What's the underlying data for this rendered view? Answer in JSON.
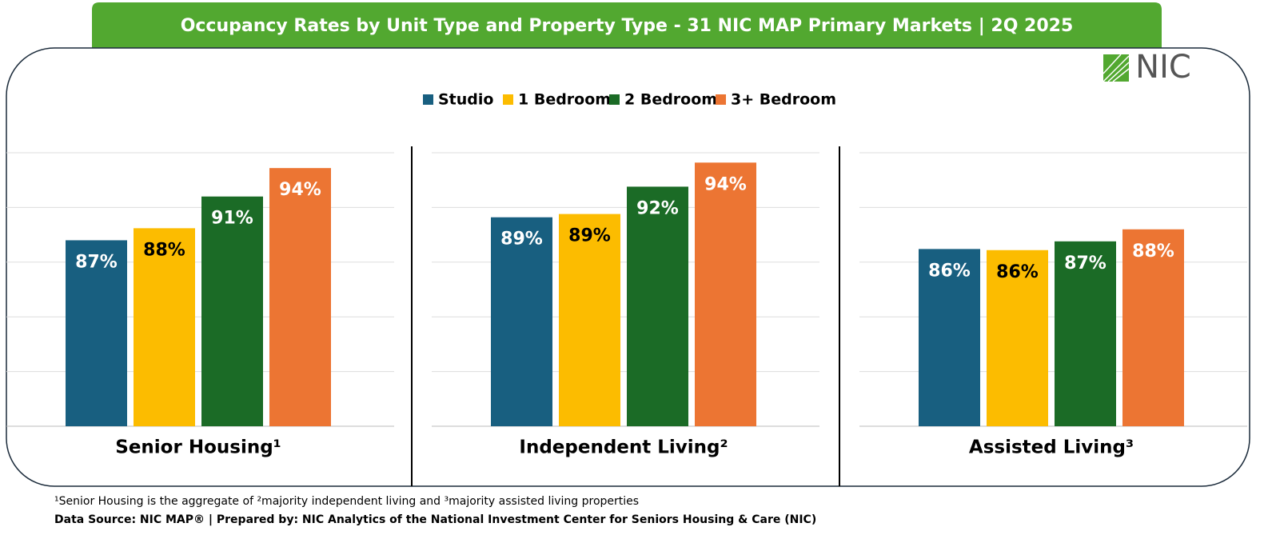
{
  "chart_data": {
    "type": "bar",
    "title": "Occupancy Rates by Unit Type and Property Type  - 31 NIC MAP Primary Markets | 2Q 2025",
    "categories": [
      "Senior Housing¹",
      "Independent Living²",
      "Assisted Living³"
    ],
    "series": [
      {
        "name": "Studio",
        "color": "#185f80",
        "values": [
          87.0,
          89.1,
          86.2
        ],
        "value_labels": [
          "87%",
          "89%",
          "86%"
        ]
      },
      {
        "name": "1 Bedroom",
        "color": "#fcbc00",
        "values": [
          88.1,
          89.4,
          86.1
        ],
        "value_labels": [
          "88%",
          "89%",
          "86%"
        ]
      },
      {
        "name": "2 Bedroom",
        "color": "#1b6b26",
        "values": [
          91.0,
          91.9,
          86.9
        ],
        "value_labels": [
          "91%",
          "92%",
          "87%"
        ]
      },
      {
        "name": "3+ Bedroom",
        "color": "#ec7533",
        "values": [
          93.6,
          94.1,
          88.0
        ],
        "value_labels": [
          "94%",
          "94%",
          "88%"
        ]
      }
    ],
    "ylim": [
      70,
      95
    ],
    "yticks": [
      70,
      75,
      80,
      85,
      90,
      95
    ],
    "grid": true,
    "logo": "NIC",
    "footnote": "¹Senior Housing is the aggregate of ²majority independent living and ³majority assisted living properties",
    "source": "Data Source: NIC MAP® | Prepared by: NIC Analytics of the National Investment Center for Seniors Housing & Care (NIC)"
  }
}
